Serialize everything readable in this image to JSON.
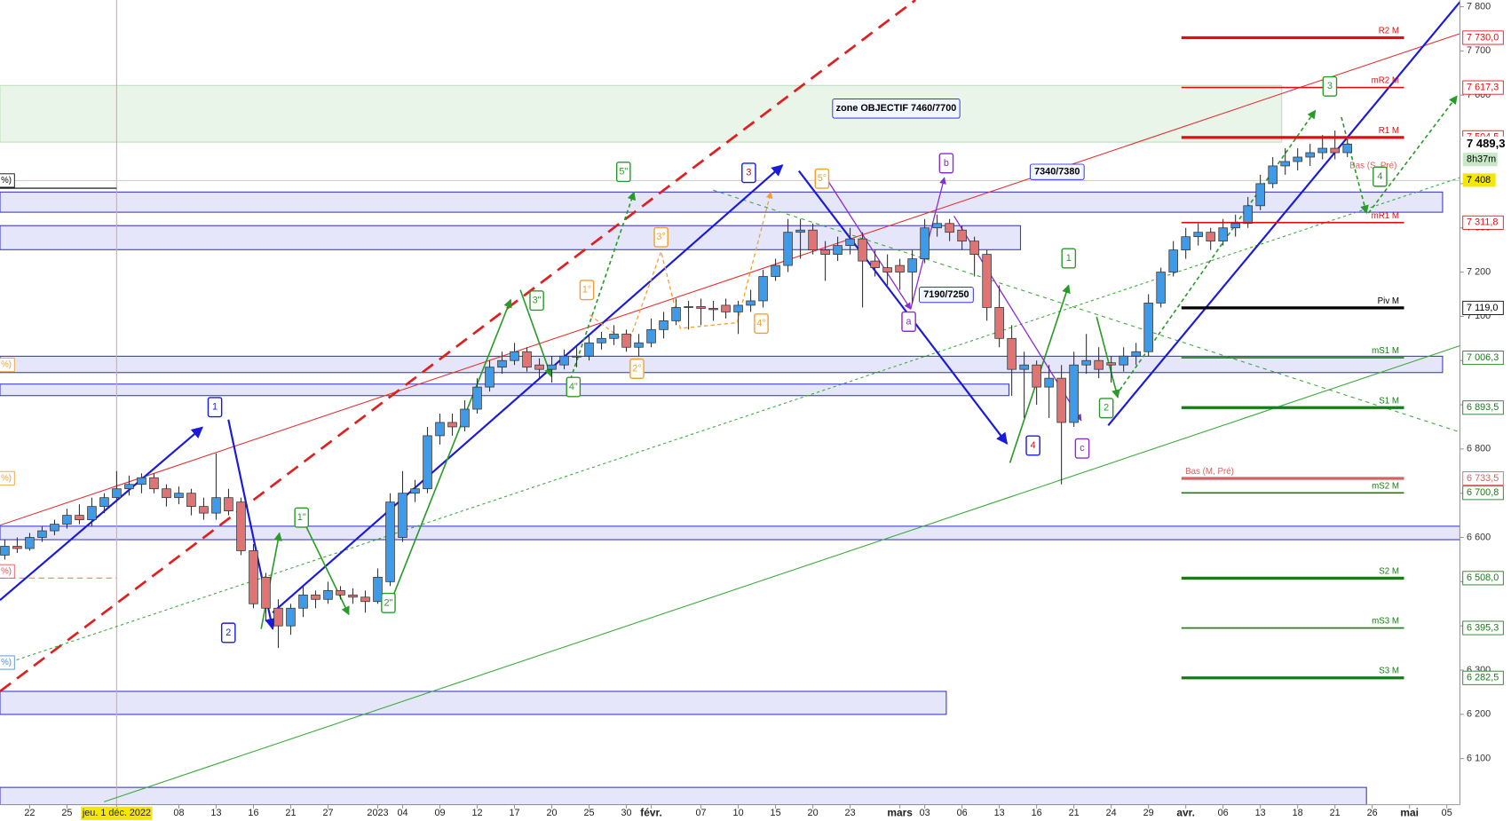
{
  "chart_data": {
    "type": "candlestick",
    "categories": [
      null,
      null,
      "22",
      null,
      null,
      "25",
      null,
      null,
      null,
      "jeu. 1 déc. 2022",
      null,
      null,
      null,
      null,
      "08",
      null,
      null,
      "13",
      null,
      null,
      "16",
      null,
      null,
      "21",
      null,
      null,
      "27",
      null,
      null,
      null,
      "2023",
      null,
      "04",
      null,
      null,
      "09",
      null,
      null,
      "12",
      null,
      null,
      "17",
      null,
      null,
      "20",
      null,
      null,
      "25",
      null,
      null,
      "30",
      null,
      "févr.",
      null,
      null,
      null,
      "07",
      null,
      null,
      "10",
      null,
      null,
      "15",
      null,
      null,
      "20",
      null,
      null,
      "23",
      null,
      null,
      null,
      "mars",
      null,
      "03",
      null,
      null,
      "06",
      null,
      null,
      "13",
      null,
      null,
      "16",
      null,
      null,
      "21",
      null,
      null,
      "24",
      null,
      null,
      "29",
      null,
      null,
      "avr.",
      null,
      null,
      "06",
      null,
      null,
      "13",
      null,
      null,
      "18",
      null,
      null,
      "21",
      null,
      null,
      "26",
      null,
      null,
      "mai",
      null,
      null,
      "05"
    ],
    "ohlc": [
      [
        6560,
        6595,
        6550,
        6580
      ],
      [
        6580,
        6600,
        6565,
        6575
      ],
      [
        6575,
        6610,
        6570,
        6600
      ],
      [
        6600,
        6625,
        6590,
        6615
      ],
      [
        6615,
        6640,
        6605,
        6630
      ],
      [
        6630,
        6665,
        6620,
        6650
      ],
      [
        6650,
        6675,
        6630,
        6640
      ],
      [
        6640,
        6690,
        6625,
        6670
      ],
      [
        6670,
        6700,
        6655,
        6690
      ],
      [
        6690,
        6750,
        6680,
        6710
      ],
      [
        6710,
        6740,
        6695,
        6720
      ],
      [
        6720,
        6745,
        6700,
        6735
      ],
      [
        6735,
        6745,
        6700,
        6710
      ],
      [
        6710,
        6720,
        6670,
        6690
      ],
      [
        6690,
        6715,
        6675,
        6700
      ],
      [
        6700,
        6710,
        6650,
        6670
      ],
      [
        6670,
        6690,
        6640,
        6655
      ],
      [
        6655,
        6790,
        6640,
        6690
      ],
      [
        6690,
        6710,
        6650,
        6660
      ],
      [
        6680,
        6690,
        6560,
        6570
      ],
      [
        6570,
        6585,
        6440,
        6450
      ],
      [
        6510,
        6520,
        6410,
        6440
      ],
      [
        6440,
        6460,
        6350,
        6400
      ],
      [
        6400,
        6450,
        6380,
        6440
      ],
      [
        6440,
        6490,
        6420,
        6470
      ],
      [
        6470,
        6480,
        6440,
        6460
      ],
      [
        6460,
        6500,
        6450,
        6480
      ],
      [
        6480,
        6490,
        6460,
        6470
      ],
      [
        6470,
        6485,
        6450,
        6465
      ],
      [
        6465,
        6480,
        6430,
        6455
      ],
      [
        6455,
        6530,
        6450,
        6510
      ],
      [
        6500,
        6700,
        6490,
        6680
      ],
      [
        6600,
        6750,
        6590,
        6700
      ],
      [
        6700,
        6730,
        6680,
        6710
      ],
      [
        6710,
        6850,
        6700,
        6830
      ],
      [
        6830,
        6880,
        6810,
        6860
      ],
      [
        6860,
        6880,
        6830,
        6850
      ],
      [
        6850,
        6910,
        6840,
        6890
      ],
      [
        6890,
        6960,
        6880,
        6940
      ],
      [
        6940,
        7000,
        6930,
        6985
      ],
      [
        6985,
        7020,
        6970,
        7000
      ],
      [
        7000,
        7040,
        6990,
        7020
      ],
      [
        7020,
        7030,
        6975,
        6985
      ],
      [
        6990,
        7005,
        6960,
        6980
      ],
      [
        6980,
        7010,
        6950,
        6990
      ],
      [
        6990,
        7025,
        6980,
        7010
      ],
      [
        7010,
        7030,
        6985,
        7010
      ],
      [
        7010,
        7055,
        7000,
        7040
      ],
      [
        7040,
        7065,
        7025,
        7050
      ],
      [
        7050,
        7080,
        7035,
        7060
      ],
      [
        7060,
        7070,
        7020,
        7030
      ],
      [
        7030,
        7060,
        7010,
        7040
      ],
      [
        7040,
        7095,
        7030,
        7070
      ],
      [
        7070,
        7110,
        7050,
        7090
      ],
      [
        7090,
        7140,
        7080,
        7120
      ],
      [
        7120,
        7135,
        7070,
        7122
      ],
      [
        7122,
        7140,
        7080,
        7118
      ],
      [
        7118,
        7135,
        7090,
        7115
      ],
      [
        7125,
        7140,
        7095,
        7110
      ],
      [
        7110,
        7135,
        7060,
        7125
      ],
      [
        7125,
        7160,
        7110,
        7135
      ],
      [
        7135,
        7205,
        7120,
        7190
      ],
      [
        7190,
        7230,
        7180,
        7215
      ],
      [
        7215,
        7320,
        7200,
        7290
      ],
      [
        7290,
        7320,
        7230,
        7295
      ],
      [
        7295,
        7310,
        7240,
        7250
      ],
      [
        7250,
        7270,
        7180,
        7240
      ],
      [
        7240,
        7280,
        7225,
        7260
      ],
      [
        7260,
        7300,
        7240,
        7275
      ],
      [
        7275,
        7290,
        7120,
        7225
      ],
      [
        7225,
        7250,
        7190,
        7210
      ],
      [
        7210,
        7240,
        7170,
        7200
      ],
      [
        7215,
        7230,
        7160,
        7200
      ],
      [
        7200,
        7250,
        7130,
        7230
      ],
      [
        7230,
        7320,
        7220,
        7300
      ],
      [
        7300,
        7330,
        7280,
        7310
      ],
      [
        7310,
        7320,
        7270,
        7290
      ],
      [
        7295,
        7305,
        7250,
        7270
      ],
      [
        7270,
        7280,
        7190,
        7240
      ],
      [
        7240,
        7250,
        7090,
        7120
      ],
      [
        7120,
        7170,
        7030,
        7050
      ],
      [
        7050,
        7080,
        6920,
        6980
      ],
      [
        6980,
        7020,
        6870,
        6990
      ],
      [
        6990,
        7000,
        6900,
        6940
      ],
      [
        6940,
        6990,
        6870,
        6960
      ],
      [
        6960,
        6990,
        6720,
        6860
      ],
      [
        6860,
        7020,
        6850,
        6990
      ],
      [
        6990,
        7060,
        6970,
        7000
      ],
      [
        7000,
        7030,
        6960,
        6980
      ],
      [
        6995,
        7010,
        6950,
        6990
      ],
      [
        6990,
        7030,
        6975,
        7010
      ],
      [
        7010,
        7040,
        6990,
        7020
      ],
      [
        7020,
        7150,
        7010,
        7130
      ],
      [
        7130,
        7210,
        7120,
        7200
      ],
      [
        7200,
        7270,
        7190,
        7250
      ],
      [
        7250,
        7300,
        7230,
        7280
      ],
      [
        7280,
        7310,
        7260,
        7290
      ],
      [
        7290,
        7300,
        7250,
        7270
      ],
      [
        7270,
        7320,
        7260,
        7300
      ],
      [
        7300,
        7330,
        7280,
        7310
      ],
      [
        7310,
        7370,
        7300,
        7350
      ],
      [
        7350,
        7420,
        7340,
        7400
      ],
      [
        7400,
        7460,
        7390,
        7440
      ],
      [
        7440,
        7480,
        7420,
        7450
      ],
      [
        7450,
        7480,
        7430,
        7460
      ],
      [
        7460,
        7490,
        7440,
        7470
      ],
      [
        7470,
        7510,
        7455,
        7480
      ],
      [
        7480,
        7520,
        7455,
        7470
      ],
      [
        7470,
        7500,
        7460,
        7489.3
      ],
      null,
      null,
      null,
      null,
      null,
      null,
      null,
      null
    ],
    "up_color": "#3d9be9",
    "down_color": "#e07474",
    "ylim": [
      6030.5,
      7815.2
    ],
    "yticks": [
      {
        "value": 6100,
        "label": "6 100"
      },
      {
        "value": 6200,
        "label": "6 200"
      },
      {
        "value": 6300,
        "label": "6 300"
      },
      {
        "value": 6400,
        "label": "6 400"
      },
      {
        "value": 6500,
        "label": "6 500"
      },
      {
        "value": 6600,
        "label": "6 600"
      },
      {
        "value": 6700,
        "label": "6 700"
      },
      {
        "value": 6800,
        "label": "6 800"
      },
      {
        "value": 6900,
        "label": "6 900"
      },
      {
        "value": 7000,
        "label": "7 000"
      },
      {
        "value": 7100,
        "label": "7 100"
      },
      {
        "value": 7200,
        "label": "7 200"
      },
      {
        "value": 7300,
        "label": "7 300"
      },
      {
        "value": 7400,
        "label": "7 400"
      },
      {
        "value": 7500,
        "label": "7 500"
      },
      {
        "value": 7600,
        "label": "7 600"
      },
      {
        "value": 7700,
        "label": "7 700"
      },
      {
        "value": 7800,
        "label": "7 800"
      }
    ],
    "levels": [
      {
        "name": "R2 M",
        "value": 7730.0,
        "label": "7 730,0",
        "color": "#e01010",
        "bold": true
      },
      {
        "name": "mR2 M",
        "value": 7617.3,
        "label": "7 617,3",
        "color": "#e01010",
        "bold": false
      },
      {
        "name": "R1 M",
        "value": 7504.5,
        "label": "7 504,5",
        "color": "#e01010",
        "bold": true
      },
      {
        "name": "mR1 M",
        "value": 7311.8,
        "label": "7 311,8",
        "color": "#e01010",
        "bold": false
      },
      {
        "name": "Piv M",
        "value": 7119.0,
        "label": "7 119,0",
        "color": "#000000",
        "bold": true
      },
      {
        "name": "mS1 M",
        "value": 7006.3,
        "label": "7 006,3",
        "color": "#1a7a1a",
        "bold": false
      },
      {
        "name": "S1 M",
        "value": 6893.5,
        "label": "6 893,5",
        "color": "#1a7a1a",
        "bold": true
      },
      {
        "name": "Bas (M, Pré)",
        "value": 6733.5,
        "label": "6 733,5",
        "color": "#d86060",
        "bold": true
      },
      {
        "name": "mS2 M",
        "value": 6700.8,
        "label": "6 700,8",
        "color": "#1a7a1a",
        "bold": false
      },
      {
        "name": "S2 M",
        "value": 6508.0,
        "label": "6 508,0",
        "color": "#1a7a1a",
        "bold": true
      },
      {
        "name": "mS3 M",
        "value": 6395.3,
        "label": "6 395,3",
        "color": "#1a7a1a",
        "bold": false
      },
      {
        "name": "S3 M",
        "value": 6282.5,
        "label": "6 282,5",
        "color": "#1a7a1a",
        "bold": true
      }
    ],
    "price_tags": [
      {
        "value": 7489.3,
        "label": "7 489,3"
      },
      {
        "value": 7408,
        "label": "7 408"
      }
    ],
    "countdown": "8h37m",
    "annotations": [
      "zone OBJECTIF 7460/7700",
      "7340/7380",
      "7190/7250",
      "Bas (S, Pré)"
    ],
    "left_tags": [
      "%)",
      "%)",
      "%)",
      "%)",
      "%)"
    ],
    "wave_labels": [
      {
        "text": "1",
        "color": "#1a1adb"
      },
      {
        "text": "2",
        "color": "#1a1adb"
      },
      {
        "text": "3",
        "color": "#d01010"
      },
      {
        "text": "4",
        "color": "#d01010"
      },
      {
        "text": "a",
        "color": "#8a2bd0"
      },
      {
        "text": "b",
        "color": "#8a2bd0"
      },
      {
        "text": "c",
        "color": "#8a2bd0"
      },
      {
        "text": "1\"",
        "color": "#2a9a2a"
      },
      {
        "text": "2\"",
        "color": "#2a9a2a"
      },
      {
        "text": "3\"",
        "color": "#2a9a2a"
      },
      {
        "text": "4\"",
        "color": "#2a9a2a"
      },
      {
        "text": "5\"",
        "color": "#2a9a2a"
      },
      {
        "text": "1",
        "color": "#2a9a2a"
      },
      {
        "text": "2",
        "color": "#2a9a2a"
      },
      {
        "text": "3",
        "color": "#2a9a2a"
      },
      {
        "text": "4",
        "color": "#2a9a2a"
      },
      {
        "text": "1°",
        "color": "#f0a030"
      },
      {
        "text": "2°",
        "color": "#f0a030"
      },
      {
        "text": "3°",
        "color": "#f0a030"
      },
      {
        "text": "4°",
        "color": "#f0a030"
      },
      {
        "text": "5°",
        "color": "#f0a030"
      }
    ]
  }
}
